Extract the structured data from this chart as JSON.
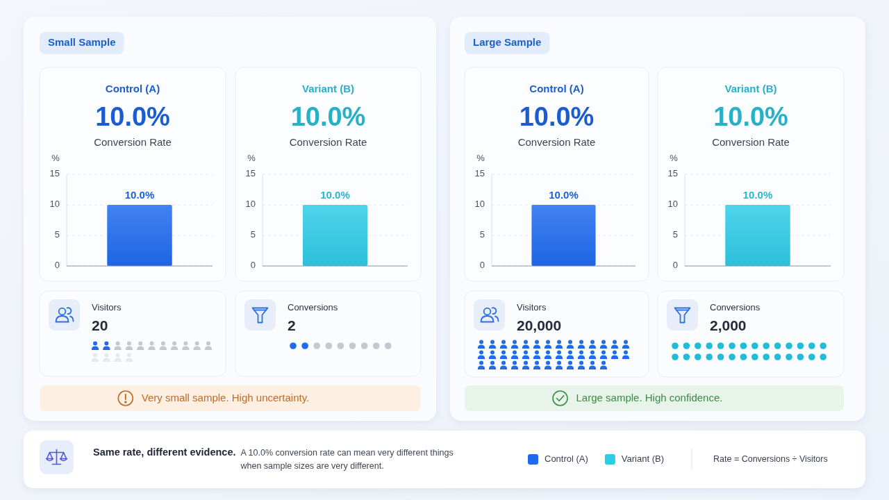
{
  "chart_data": [
    {
      "type": "other",
      "title": "Small Sample"
    },
    {
      "type": "bar",
      "title": "Control (A)",
      "annotations": [
        "10.0%"
      ],
      "subtitle": "Conversion Rate",
      "ylabel": "%",
      "categories": [
        null
      ],
      "values": [
        10.0
      ],
      "color": "#1f6bf0",
      "ylim": [
        0,
        15
      ],
      "yticks": [
        0,
        5,
        10,
        15
      ],
      "grid": "y",
      "value_labels": [
        "10.0%"
      ]
    },
    {
      "type": "bar",
      "title": "Variant (B)",
      "annotations": [
        "10.0%"
      ],
      "subtitle": "Conversion Rate",
      "ylabel": "%",
      "categories": [
        null
      ],
      "values": [
        10.0
      ],
      "color": "#2ecbe6",
      "ylim": [
        0,
        15
      ],
      "yticks": [
        0,
        5,
        10,
        15
      ],
      "grid": "y",
      "value_labels": [
        "10.0%"
      ]
    },
    {
      "type": "other",
      "title": "Visitors",
      "annotations": [
        "20"
      ]
    },
    {
      "type": "other",
      "title": "Conversions",
      "annotations": [
        "2"
      ]
    },
    {
      "type": "other",
      "annotations": [
        "Very small sample. High uncertainty."
      ]
    },
    {
      "type": "other",
      "title": "Large Sample"
    },
    {
      "type": "bar",
      "title": "Control (A)",
      "annotations": [
        "10.0%"
      ],
      "subtitle": "Conversion Rate",
      "ylabel": "%",
      "categories": [
        null
      ],
      "values": [
        10.0
      ],
      "color": "#1f6bf0",
      "ylim": [
        0,
        15
      ],
      "yticks": [
        0,
        5,
        10,
        15
      ],
      "grid": "y",
      "value_labels": [
        "10.0%"
      ]
    },
    {
      "type": "bar",
      "title": "Variant (B)",
      "annotations": [
        "10.0%"
      ],
      "subtitle": "Conversion Rate",
      "ylabel": "%",
      "categories": [
        null
      ],
      "values": [
        10.0
      ],
      "color": "#2ecbe6",
      "ylim": [
        0,
        15
      ],
      "yticks": [
        0,
        5,
        10,
        15
      ],
      "grid": "y",
      "value_labels": [
        "10.0%"
      ]
    },
    {
      "type": "other",
      "title": "Visitors",
      "annotations": [
        "20,000"
      ]
    },
    {
      "type": "other",
      "title": "Conversions",
      "annotations": [
        "2,000"
      ]
    },
    {
      "type": "other",
      "annotations": [
        "Large sample. High confidence."
      ]
    },
    {
      "type": "other",
      "title": "Same rate, different evidence.",
      "annotations": [
        "A 10.0% conversion rate can mean very different things when sample sizes are very different.",
        "Rate = Conversions ÷ Visitors"
      ],
      "series": [
        {
          "name": "Control (A)",
          "color": "#1f6bf0"
        },
        {
          "name": "Variant (B)",
          "color": "#2ecbe6"
        }
      ],
      "legend": "right"
    }
  ]
}
